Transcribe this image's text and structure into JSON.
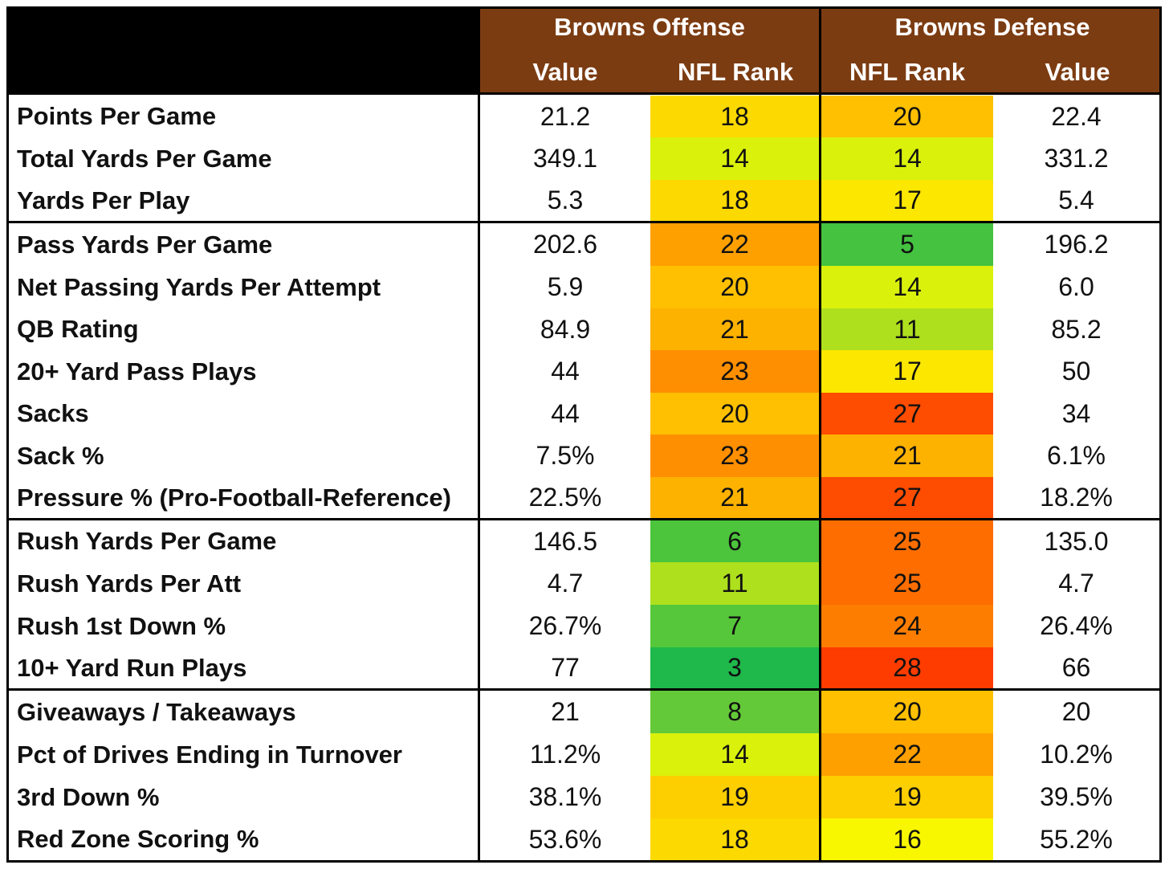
{
  "header": {
    "offense_title": "Browns Offense",
    "defense_title": "Browns Defense",
    "col_off_value": "Value",
    "col_off_rank": "NFL Rank",
    "col_def_rank": "NFL Rank",
    "col_def_value": "Value"
  },
  "rank_colors": {
    "3": "#1fb84b",
    "5": "#44c240",
    "6": "#4cc43c",
    "7": "#56c73a",
    "8": "#64c938",
    "11": "#aee01e",
    "14": "#daf10c",
    "16": "#f9f700",
    "17": "#fbe700",
    "18": "#fcd900",
    "19": "#fdcf00",
    "20": "#fec000",
    "21": "#feb200",
    "22": "#fea000",
    "23": "#fe8f00",
    "24": "#fd7d00",
    "25": "#fd6d00",
    "27": "#fe4c00",
    "28": "#fe3c00"
  },
  "rows": [
    {
      "label": "Points Per Game",
      "off_value": "21.2",
      "off_rank": "18",
      "def_rank": "20",
      "def_value": "22.4"
    },
    {
      "label": "Total Yards Per Game",
      "off_value": "349.1",
      "off_rank": "14",
      "def_rank": "14",
      "def_value": "331.2"
    },
    {
      "label": "Yards Per Play",
      "off_value": "5.3",
      "off_rank": "18",
      "def_rank": "17",
      "def_value": "5.4"
    },
    {
      "label": "Pass Yards Per Game",
      "off_value": "202.6",
      "off_rank": "22",
      "def_rank": "5",
      "def_value": "196.2"
    },
    {
      "label": "Net Passing Yards Per Attempt",
      "off_value": "5.9",
      "off_rank": "20",
      "def_rank": "14",
      "def_value": "6.0"
    },
    {
      "label": "QB Rating",
      "off_value": "84.9",
      "off_rank": "21",
      "def_rank": "11",
      "def_value": "85.2"
    },
    {
      "label": "20+ Yard Pass Plays",
      "off_value": "44",
      "off_rank": "23",
      "def_rank": "17",
      "def_value": "50"
    },
    {
      "label": "Sacks",
      "off_value": "44",
      "off_rank": "20",
      "def_rank": "27",
      "def_value": "34"
    },
    {
      "label": "Sack %",
      "off_value": "7.5%",
      "off_rank": "23",
      "def_rank": "21",
      "def_value": "6.1%"
    },
    {
      "label": "Pressure % (Pro-Football-Reference)",
      "off_value": "22.5%",
      "off_rank": "21",
      "def_rank": "27",
      "def_value": "18.2%"
    },
    {
      "label": "Rush Yards Per Game",
      "off_value": "146.5",
      "off_rank": "6",
      "def_rank": "25",
      "def_value": "135.0"
    },
    {
      "label": "Rush Yards Per Att",
      "off_value": "4.7",
      "off_rank": "11",
      "def_rank": "25",
      "def_value": "4.7"
    },
    {
      "label": "Rush 1st Down %",
      "off_value": "26.7%",
      "off_rank": "7",
      "def_rank": "24",
      "def_value": "26.4%"
    },
    {
      "label": "10+ Yard Run Plays",
      "off_value": "77",
      "off_rank": "3",
      "def_rank": "28",
      "def_value": "66"
    },
    {
      "label": "Giveaways / Takeaways",
      "off_value": "21",
      "off_rank": "8",
      "def_rank": "20",
      "def_value": "20"
    },
    {
      "label": "Pct of Drives Ending in Turnover",
      "off_value": "11.2%",
      "off_rank": "14",
      "def_rank": "22",
      "def_value": "10.2%"
    },
    {
      "label": "3rd Down %",
      "off_value": "38.1%",
      "off_rank": "19",
      "def_rank": "19",
      "def_value": "39.5%"
    },
    {
      "label": "Red Zone Scoring %",
      "off_value": "53.6%",
      "off_rank": "18",
      "def_rank": "16",
      "def_value": "55.2%"
    }
  ]
}
